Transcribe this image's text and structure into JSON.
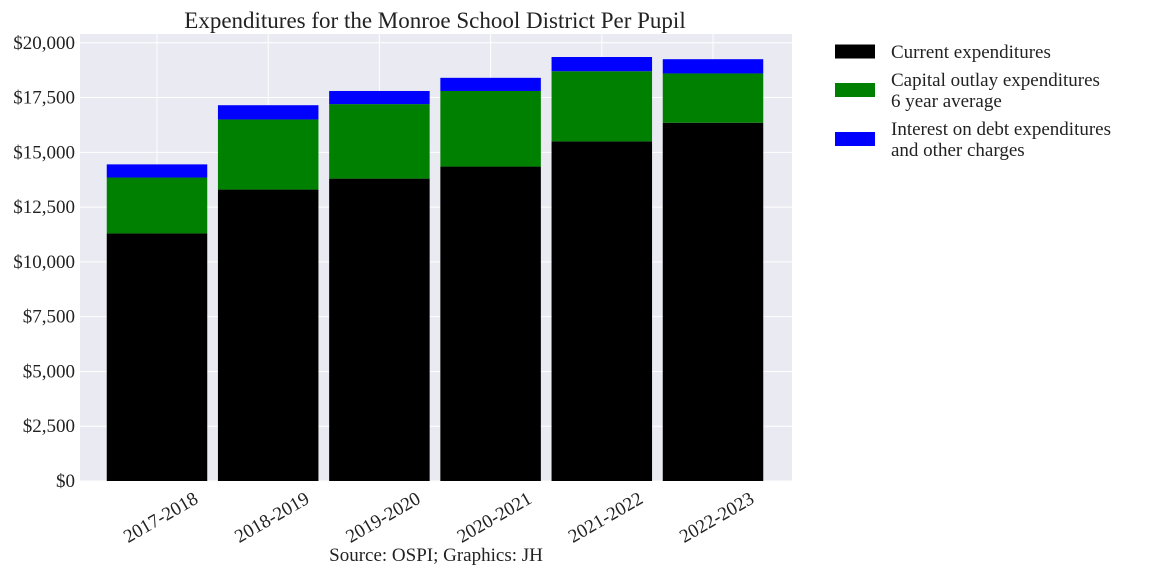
{
  "chart_data": {
    "type": "bar",
    "stacked": true,
    "title": "Expenditures for the Monroe School District Per Pupil",
    "xlabel": "Source: OSPI; Graphics: JH",
    "ylabel": "",
    "ylim": [
      0,
      20400
    ],
    "y_ticks": [
      0,
      2500,
      5000,
      7500,
      10000,
      12500,
      15000,
      17500,
      20000
    ],
    "y_tick_labels": [
      "$0",
      "$2,500",
      "$5,000",
      "$7,500",
      "$10,000",
      "$12,500",
      "$15,000",
      "$17,500",
      "$20,000"
    ],
    "categories": [
      "2017-2018",
      "2018-2019",
      "2019-2020",
      "2020-2021",
      "2021-2022",
      "2022-2023"
    ],
    "series": [
      {
        "name": "Current expenditures",
        "color": "#000000",
        "values": [
          11300,
          13300,
          13800,
          14350,
          15500,
          16350
        ]
      },
      {
        "name": "Capital outlay expenditures\n6 year average",
        "color": "#008000",
        "values": [
          2550,
          3200,
          3400,
          3450,
          3200,
          2250
        ]
      },
      {
        "name": "Interest on debt expenditures\nand other charges",
        "color": "#0000ff",
        "values": [
          600,
          650,
          600,
          600,
          650,
          650
        ]
      }
    ],
    "grid": true,
    "legend_position": "outside right"
  }
}
